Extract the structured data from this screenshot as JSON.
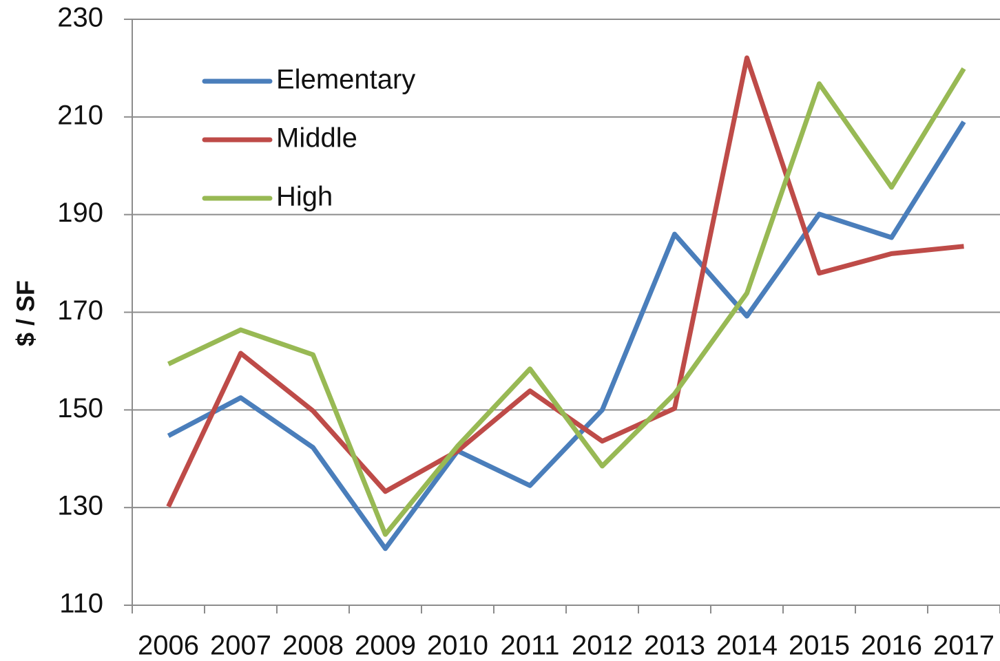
{
  "chart_data": {
    "type": "line",
    "y_label": "$ / SF",
    "categories": [
      "2006",
      "2007",
      "2008",
      "2009",
      "2010",
      "2011",
      "2012",
      "2013",
      "2014",
      "2015",
      "2016",
      "2017"
    ],
    "series": [
      {
        "name": "Elementary",
        "color": "#4a7ebb",
        "values": [
          144.7,
          152.5,
          142.3,
          121.6,
          141.6,
          134.5,
          150,
          186,
          169.2,
          190.1,
          185.3,
          209
        ]
      },
      {
        "name": "Middle",
        "color": "#be4b48",
        "values": [
          130.2,
          161.6,
          149.8,
          133.3,
          141.6,
          153.9,
          143.6,
          150.3,
          222.1,
          178,
          182,
          183.5
        ]
      },
      {
        "name": "High",
        "color": "#98b954",
        "values": [
          159.4,
          166.4,
          161.3,
          124.5,
          142.6,
          158.4,
          138.5,
          153.3,
          173.9,
          216.8,
          195.6,
          219.9
        ]
      }
    ],
    "ylim": [
      110,
      230
    ],
    "yticks": [
      110,
      130,
      150,
      170,
      190,
      210,
      230
    ],
    "grid": true,
    "legend": "upper left"
  }
}
